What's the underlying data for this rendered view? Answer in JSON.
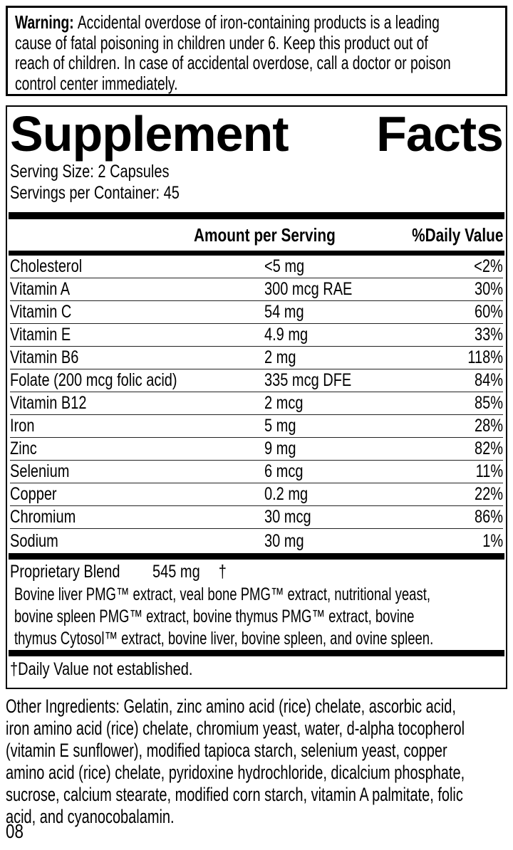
{
  "warning": {
    "label": "Warning:",
    "lines": [
      "Accidental overdose of iron-containing products is a leading",
      "cause of fatal poisoning in children under 6. Keep this product out of",
      "reach of children. In case of accidental overdose, call a doctor or poison",
      "control center immediately."
    ]
  },
  "supplement_facts": {
    "title_word1": "Supplement",
    "title_word2": "Facts",
    "serving_size": "Serving Size: 2 Capsules",
    "servings_per_container": "Servings per Container: 45",
    "columns": {
      "amount": "Amount per Serving",
      "daily_value": "%Daily Value"
    },
    "rows": [
      {
        "name": "Cholesterol",
        "amount": "<5 mg",
        "dv": "<2%"
      },
      {
        "name": "Vitamin A",
        "amount": "300 mcg RAE",
        "dv": "30%"
      },
      {
        "name": "Vitamin C",
        "amount": "54 mg",
        "dv": "60%"
      },
      {
        "name": "Vitamin E",
        "amount": "4.9 mg",
        "dv": "33%"
      },
      {
        "name": "Vitamin B6",
        "amount": "2 mg",
        "dv": "118%"
      },
      {
        "name": "Folate (200 mcg folic acid)",
        "amount": "335 mcg DFE",
        "dv": "84%"
      },
      {
        "name": "Vitamin B12",
        "amount": "2 mcg",
        "dv": "85%"
      },
      {
        "name": "Iron",
        "amount": "5 mg",
        "dv": "28%"
      },
      {
        "name": "Zinc",
        "amount": "9 mg",
        "dv": "82%"
      },
      {
        "name": "Selenium",
        "amount": "6 mcg",
        "dv": "11%"
      },
      {
        "name": "Copper",
        "amount": "0.2 mg",
        "dv": "22%"
      },
      {
        "name": "Chromium",
        "amount": "30 mcg",
        "dv": "86%"
      },
      {
        "name": "Sodium",
        "amount": "30 mg",
        "dv": "1%"
      }
    ],
    "proprietary_blend": {
      "name": "Proprietary Blend",
      "amount": "545 mg",
      "dv": "†",
      "description_lines": [
        "Bovine liver PMG™ extract, veal bone PMG™ extract, nutritional yeast,",
        "bovine spleen PMG™ extract, bovine thymus PMG™ extract, bovine",
        "thymus Cytosol™ extract, bovine liver, bovine spleen, and ovine spleen."
      ]
    },
    "footnote": "†Daily Value not established."
  },
  "other_ingredients": {
    "lines": [
      "Other Ingredients: Gelatin, zinc amino acid (rice) chelate, ascorbic acid,",
      "iron amino acid (rice) chelate, chromium yeast, water, d-alpha tocopherol",
      "(vitamin E sunflower), modified tapioca starch, selenium yeast, copper",
      "amino acid (rice) chelate, pyridoxine hydrochloride, dicalcium phosphate,",
      "sucrose, calcium stearate, modified corn starch, vitamin A palmitate,  folic",
      "acid, and cyanocobalamin."
    ]
  },
  "footer": {
    "code": "08"
  },
  "colors": {
    "text": "#000000",
    "background": "#ffffff",
    "rule": "#222222"
  }
}
